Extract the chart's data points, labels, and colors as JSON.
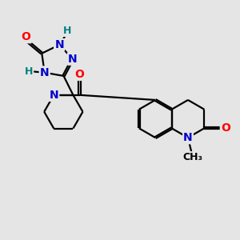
{
  "bg_color": "#e5e5e5",
  "bond_color": "#000000",
  "bond_width": 1.6,
  "atom_colors": {
    "O": "#ff0000",
    "N": "#0000cc",
    "H": "#008080",
    "C": "#000000"
  },
  "font_size_atoms": 10,
  "font_size_H": 9,
  "font_size_me": 9,
  "dbo": 0.055
}
